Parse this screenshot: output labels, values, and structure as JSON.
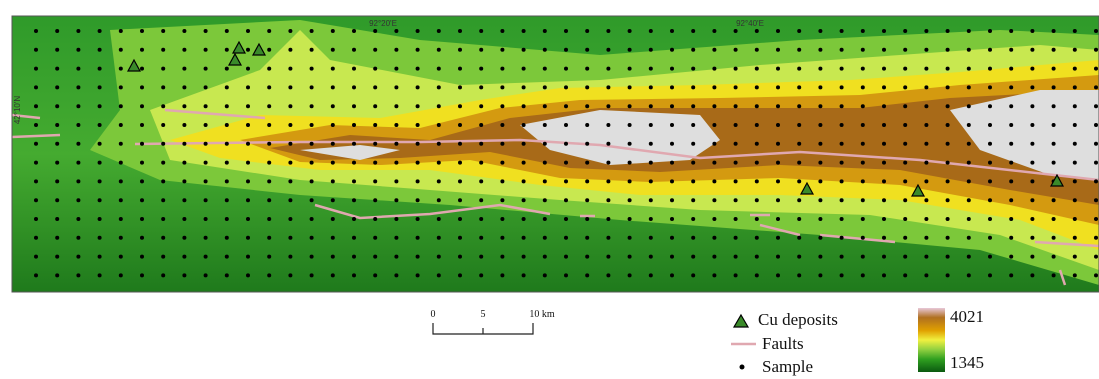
{
  "map": {
    "coordinate_labels": {
      "lon_1": "92°20'E",
      "lon_2": "92°40'E",
      "lat_1": "42°10'N"
    },
    "scale_bar": {
      "labels": [
        "0",
        "5",
        "10 km"
      ]
    },
    "legend": {
      "items": [
        "Cu deposits",
        "Faults",
        "Sample"
      ]
    },
    "elevation_scale": {
      "max": 4021,
      "min": 1345
    }
  }
}
